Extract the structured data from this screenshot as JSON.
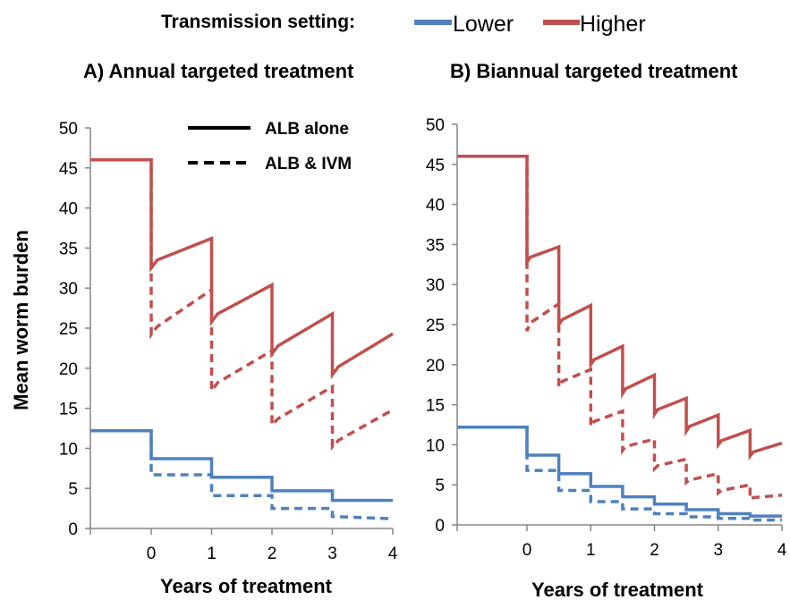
{
  "legend": {
    "title": "Transmission setting:",
    "items": [
      {
        "label": "Lower",
        "color": "#4f81bd"
      },
      {
        "label": "Higher",
        "color": "#c0504d"
      }
    ],
    "style_items": [
      {
        "label": "ALB alone",
        "style": "solid"
      },
      {
        "label": "ALB & IVM",
        "style": "dashed"
      }
    ]
  },
  "ylabel": "Mean worm burden",
  "chart_data": [
    {
      "type": "line",
      "title": "A) Annual targeted treatment",
      "xlabel": "Years of treatment",
      "ylabel": "Mean worm burden",
      "xlim": [
        -1,
        4
      ],
      "ylim": [
        0,
        50
      ],
      "xticks": [
        0,
        1,
        2,
        3,
        4
      ],
      "yticks": [
        0,
        5,
        10,
        15,
        20,
        25,
        30,
        35,
        40,
        45,
        50
      ],
      "series": [
        {
          "name": "Higher",
          "style": "solid",
          "color": "#c0504d",
          "points": [
            [
              -1,
              46
            ],
            [
              0,
              46
            ],
            [
              0,
              32.5
            ],
            [
              0.1,
              33.5
            ],
            [
              1,
              36.2
            ],
            [
              1,
              25.8
            ],
            [
              1.1,
              26.8
            ],
            [
              2,
              30.4
            ],
            [
              2,
              21.8
            ],
            [
              2.1,
              22.8
            ],
            [
              3,
              26.8
            ],
            [
              3,
              19.2
            ],
            [
              3.1,
              20.2
            ],
            [
              4,
              24.3
            ]
          ]
        },
        {
          "name": "Higher",
          "style": "dashed",
          "color": "#c0504d",
          "points": [
            [
              -1,
              46
            ],
            [
              0,
              46
            ],
            [
              0,
              24.2
            ],
            [
              0.1,
              25.2
            ],
            [
              1,
              29.8
            ],
            [
              1,
              17.2
            ],
            [
              1.1,
              18.2
            ],
            [
              2,
              22.2
            ],
            [
              2,
              12.9
            ],
            [
              2.1,
              13.7
            ],
            [
              3,
              17.7
            ],
            [
              3,
              10.2
            ],
            [
              3.1,
              11
            ],
            [
              4,
              14.8
            ]
          ]
        },
        {
          "name": "Lower",
          "style": "solid",
          "color": "#4f81bd",
          "points": [
            [
              -1,
              12.2
            ],
            [
              0,
              12.2
            ],
            [
              0,
              8.7
            ],
            [
              1,
              8.7
            ],
            [
              1,
              6.4
            ],
            [
              2,
              6.4
            ],
            [
              2,
              4.7
            ],
            [
              3,
              4.7
            ],
            [
              3,
              3.5
            ],
            [
              4,
              3.5
            ]
          ]
        },
        {
          "name": "Lower",
          "style": "dashed",
          "color": "#4f81bd",
          "points": [
            [
              -1,
              12.2
            ],
            [
              0,
              12.2
            ],
            [
              0,
              6.7
            ],
            [
              1,
              6.7
            ],
            [
              1,
              4.1
            ],
            [
              2,
              4.1
            ],
            [
              2,
              2.5
            ],
            [
              3,
              2.5
            ],
            [
              3,
              1.5
            ],
            [
              4,
              1.2
            ]
          ]
        }
      ]
    },
    {
      "type": "line",
      "title": "B) Biannual targeted treatment",
      "xlabel": "Years of treatment",
      "ylabel": "",
      "xlim": [
        -1,
        4
      ],
      "ylim": [
        0,
        50
      ],
      "xticks": [
        0,
        1,
        2,
        3,
        4
      ],
      "yticks": [
        0,
        5,
        10,
        15,
        20,
        25,
        30,
        35,
        40,
        45,
        50
      ],
      "series": [
        {
          "name": "Higher",
          "style": "solid",
          "color": "#c0504d",
          "points": [
            [
              -1,
              46
            ],
            [
              0,
              46
            ],
            [
              0,
              32.8
            ],
            [
              0.05,
              33.4
            ],
            [
              0.5,
              34.7
            ],
            [
              0.5,
              25
            ],
            [
              0.55,
              25.6
            ],
            [
              1,
              27.4
            ],
            [
              1,
              20
            ],
            [
              1.05,
              20.6
            ],
            [
              1.5,
              22.3
            ],
            [
              1.5,
              16.4
            ],
            [
              1.55,
              17
            ],
            [
              2,
              18.7
            ],
            [
              2,
              13.8
            ],
            [
              2.05,
              14.4
            ],
            [
              2.5,
              15.8
            ],
            [
              2.5,
              11.7
            ],
            [
              2.55,
              12.3
            ],
            [
              3,
              13.7
            ],
            [
              3,
              10
            ],
            [
              3.05,
              10.5
            ],
            [
              3.5,
              11.8
            ],
            [
              3.5,
              8.6
            ],
            [
              3.55,
              9.1
            ],
            [
              4,
              10.2
            ]
          ]
        },
        {
          "name": "Higher",
          "style": "dashed",
          "color": "#c0504d",
          "points": [
            [
              -1,
              46
            ],
            [
              0,
              46
            ],
            [
              0,
              24.2
            ],
            [
              0.05,
              25.2
            ],
            [
              0.5,
              27.6
            ],
            [
              0.5,
              17.2
            ],
            [
              0.55,
              17.9
            ],
            [
              1,
              19.4
            ],
            [
              1,
              12.3
            ],
            [
              1.05,
              12.9
            ],
            [
              1.5,
              14.2
            ],
            [
              1.5,
              9.3
            ],
            [
              1.55,
              9.8
            ],
            [
              2,
              10.7
            ],
            [
              2,
              7
            ],
            [
              2.05,
              7.4
            ],
            [
              2.5,
              8.2
            ],
            [
              2.5,
              5.3
            ],
            [
              2.55,
              5.6
            ],
            [
              3,
              6.4
            ],
            [
              3,
              4
            ],
            [
              3.05,
              4.3
            ],
            [
              3.5,
              5
            ],
            [
              3.5,
              3.2
            ],
            [
              3.55,
              3.4
            ],
            [
              4,
              3.7
            ]
          ]
        },
        {
          "name": "Lower",
          "style": "solid",
          "color": "#4f81bd",
          "points": [
            [
              -1,
              12.2
            ],
            [
              0,
              12.2
            ],
            [
              0,
              8.7
            ],
            [
              0.5,
              8.7
            ],
            [
              0.5,
              6.4
            ],
            [
              1,
              6.4
            ],
            [
              1,
              4.8
            ],
            [
              1.5,
              4.8
            ],
            [
              1.5,
              3.5
            ],
            [
              2,
              3.5
            ],
            [
              2,
              2.6
            ],
            [
              2.5,
              2.6
            ],
            [
              2.5,
              1.9
            ],
            [
              3,
              1.9
            ],
            [
              3,
              1.4
            ],
            [
              3.5,
              1.4
            ],
            [
              3.5,
              1.1
            ],
            [
              4,
              1.1
            ]
          ]
        },
        {
          "name": "Lower",
          "style": "dashed",
          "color": "#4f81bd",
          "points": [
            [
              -1,
              12.2
            ],
            [
              0,
              12.2
            ],
            [
              0,
              6.8
            ],
            [
              0.5,
              6.8
            ],
            [
              0.5,
              4.3
            ],
            [
              1,
              4.3
            ],
            [
              1,
              2.9
            ],
            [
              1.5,
              2.9
            ],
            [
              1.5,
              2
            ],
            [
              2,
              2
            ],
            [
              2,
              1.4
            ],
            [
              2.5,
              1.4
            ],
            [
              2.5,
              1
            ],
            [
              3,
              1
            ],
            [
              3,
              0.8
            ],
            [
              3.5,
              0.8
            ],
            [
              3.5,
              0.6
            ],
            [
              4,
              0.6
            ]
          ]
        }
      ]
    }
  ]
}
